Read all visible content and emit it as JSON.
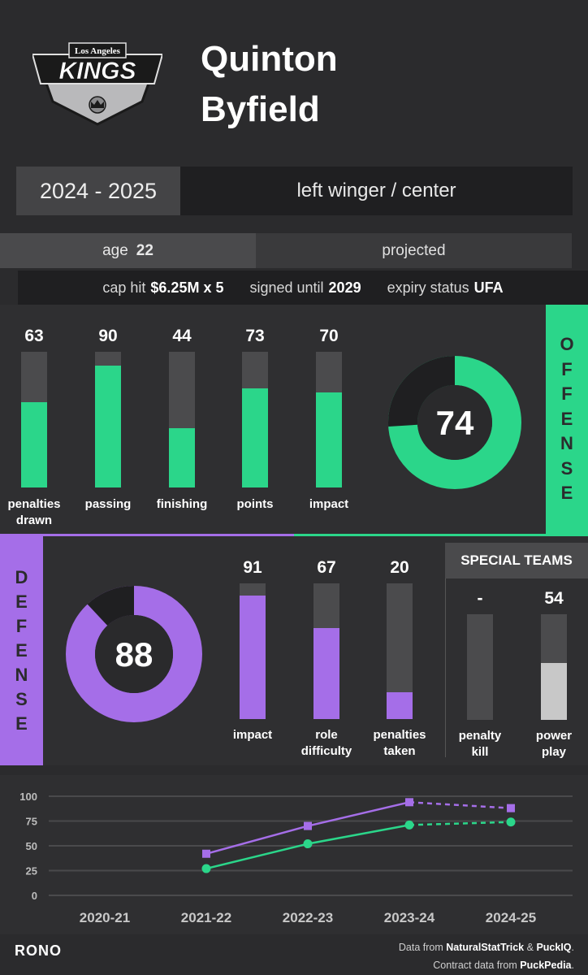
{
  "header": {
    "logo_text_top": "Los Angeles",
    "logo_text_main": "KINGS",
    "player_first": "Quinton",
    "player_last": "Byfield"
  },
  "season": {
    "label": "2024 - 2025",
    "position": "left winger / center"
  },
  "info": {
    "age_label": "age",
    "age_value": "22",
    "projected_label": "projected"
  },
  "contract": {
    "cap_hit_label": "cap hit",
    "cap_hit_value": "$6.25M x 5",
    "signed_until_label": "signed until",
    "signed_until_value": "2029",
    "expiry_label": "expiry status",
    "expiry_value": "UFA"
  },
  "colors": {
    "offense": "#2bd68a",
    "defense": "#a56ee8",
    "track": "#4b4b4d",
    "power_play": "#c8c8c8"
  },
  "offense": {
    "side_letters": [
      "O",
      "F",
      "F",
      "E",
      "N",
      "S",
      "E"
    ],
    "overall": "74",
    "overall_value": 74,
    "bars": [
      {
        "label_1": "penalties",
        "label_2": "drawn",
        "value": "63",
        "pct": 63
      },
      {
        "label_1": "passing",
        "label_2": "",
        "value": "90",
        "pct": 90
      },
      {
        "label_1": "finishing",
        "label_2": "",
        "value": "44",
        "pct": 44
      },
      {
        "label_1": "points",
        "label_2": "",
        "value": "73",
        "pct": 73
      },
      {
        "label_1": "impact",
        "label_2": "",
        "value": "70",
        "pct": 70
      }
    ]
  },
  "defense": {
    "side_letters": [
      "D",
      "E",
      "F",
      "E",
      "N",
      "S",
      "E"
    ],
    "overall": "88",
    "overall_value": 88,
    "bars": [
      {
        "label_1": "impact",
        "label_2": "",
        "value": "91",
        "pct": 91
      },
      {
        "label_1": "role",
        "label_2": "difficulty",
        "value": "67",
        "pct": 67
      },
      {
        "label_1": "penalties",
        "label_2": "taken",
        "value": "20",
        "pct": 20
      }
    ]
  },
  "special_teams": {
    "title": "SPECIAL TEAMS",
    "bars": [
      {
        "label_1": "penalty",
        "label_2": "kill",
        "value": "-",
        "pct": 0
      },
      {
        "label_1": "power",
        "label_2": "play",
        "value": "54",
        "pct": 54
      }
    ]
  },
  "chart_data": {
    "type": "line",
    "categories": [
      "2020-21",
      "2021-22",
      "2022-23",
      "2023-24",
      "2024-25"
    ],
    "y_ticks": [
      "0",
      "25",
      "50",
      "75",
      "100"
    ],
    "ylim": [
      0,
      100
    ],
    "grid": true,
    "series": [
      {
        "color": "#a56ee8",
        "marker": "square",
        "values": [
          null,
          42,
          70,
          94,
          88
        ],
        "projected_from_index": 3
      },
      {
        "color": "#2bd68a",
        "marker": "circle",
        "values": [
          null,
          27,
          52,
          71,
          74
        ],
        "projected_from_index": 3
      }
    ]
  },
  "footer": {
    "brand": "RONO",
    "source_prefix": "Data from ",
    "source_a": "NaturalStatTrick",
    "source_and": " & ",
    "source_b": "PuckIQ",
    "source_end": ".",
    "contract_prefix": "Contract data from ",
    "contract_source": "PuckPedia",
    "contract_end": "."
  }
}
